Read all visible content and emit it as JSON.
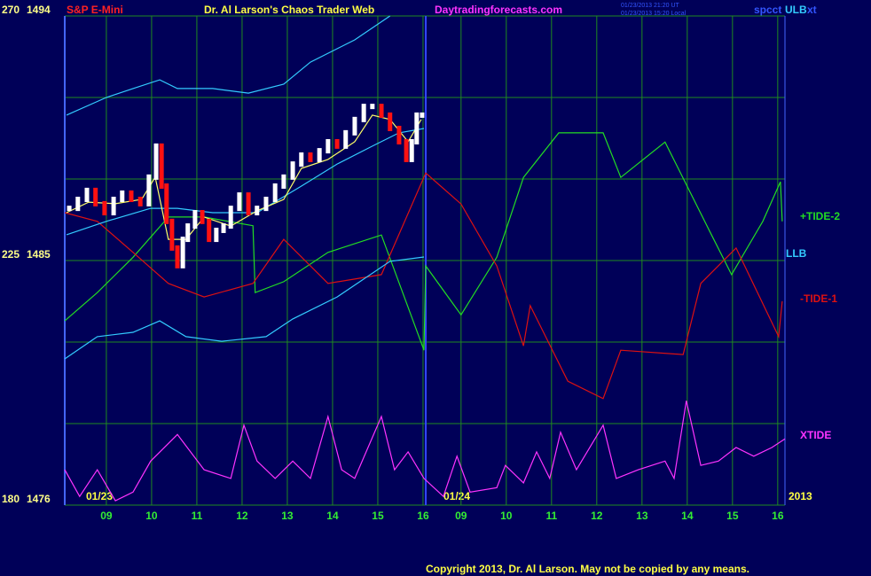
{
  "header": {
    "symbol": "S&P E-Mini",
    "site_name": "Dr. Al Larson's Chaos Trader Web",
    "site_url": "Daytradingforecasts.com",
    "time_ut": "01/23/2013 21:20 UT",
    "time_local": "01/23/2013 15:20 Local",
    "chart_code_left": "spcct",
    "chart_code_right": "xt"
  },
  "footer": {
    "copyright": "Copyright 2013, Dr. Al Larson. May not be copied by any means."
  },
  "date_labels": [
    "01/23",
    "01/24",
    "2013"
  ],
  "chart_data": {
    "type": "line",
    "grid": true,
    "xlim": [
      8.08,
      24.0
    ],
    "xticks": [
      {
        "value": 9,
        "label": "09"
      },
      10,
      11,
      12,
      13,
      14,
      15,
      16,
      {
        "value": 16.84,
        "label": "09"
      },
      {
        "value": 17.84,
        "label": "10"
      },
      {
        "value": 18.84,
        "label": "11"
      },
      {
        "value": 19.84,
        "label": "12"
      },
      {
        "value": 20.84,
        "label": "13"
      },
      {
        "value": 21.84,
        "label": "14"
      },
      {
        "value": 22.84,
        "label": "15"
      },
      {
        "value": 23.84,
        "label": "16"
      }
    ],
    "ylim": [
      180,
      270
    ],
    "yticks": [
      180,
      {
        "value": 195,
        "label": null
      },
      {
        "value": 210,
        "label": null
      },
      225,
      {
        "value": 240,
        "label": null
      },
      {
        "value": 255,
        "label": null
      },
      270
    ],
    "y2lim": [
      1476,
      1494
    ],
    "y2ticks": [
      1476,
      1485,
      1494
    ],
    "current_time": 16.06,
    "series": [
      {
        "name": "+TIDE-2",
        "color": "#22dd22",
        "axis": "y",
        "x": [
          8.08,
          8.8,
          9.59,
          10.37,
          11.16,
          12.24,
          12.29,
          12.92,
          13.9,
          15.08,
          16.02,
          16.06,
          16.84,
          17.63,
          18.22,
          19.0,
          19.98,
          20.37,
          21.35,
          22.33,
          22.82,
          23.51,
          23.9,
          23.94
        ],
        "values": [
          213.9,
          219.1,
          225.6,
          233.0,
          233.0,
          231.4,
          219.1,
          221.1,
          226.5,
          229.7,
          208.5,
          224.0,
          215.0,
          225.6,
          240.3,
          248.5,
          248.5,
          240.3,
          246.8,
          230.5,
          222.4,
          232.2,
          239.5,
          232.2
        ]
      },
      {
        "name": "-TIDE-1",
        "color": "#dd1111",
        "axis": "y",
        "x": [
          8.08,
          8.8,
          9.59,
          10.37,
          11.16,
          12.24,
          12.92,
          13.9,
          15.08,
          16.06,
          16.84,
          17.63,
          18.22,
          18.37,
          19.2,
          19.98,
          20.37,
          21.75,
          22.14,
          22.92,
          23.86,
          23.94
        ],
        "values": [
          233.8,
          232.2,
          226.5,
          220.8,
          218.3,
          220.8,
          228.9,
          220.8,
          222.4,
          241.1,
          235.4,
          224.0,
          209.3,
          216.7,
          202.8,
          199.6,
          208.5,
          207.7,
          220.8,
          227.3,
          211.0,
          217.5
        ]
      },
      {
        "name": "XTIDE",
        "color": "#ff33ff",
        "axis": "y",
        "x": [
          8.08,
          8.41,
          8.8,
          9.2,
          9.59,
          9.98,
          10.57,
          11.16,
          11.75,
          12.04,
          12.33,
          12.73,
          13.12,
          13.51,
          13.9,
          14.2,
          14.49,
          15.08,
          15.37,
          15.67,
          16.02,
          16.45,
          16.75,
          17.04,
          17.63,
          17.82,
          18.22,
          18.51,
          18.8,
          19.04,
          19.39,
          19.98,
          20.27,
          20.76,
          21.35,
          21.55,
          21.82,
          22.14,
          22.53,
          22.92,
          23.31,
          23.71,
          24.0
        ],
        "values": [
          186.5,
          181.6,
          186.5,
          180.8,
          182.4,
          188.1,
          193.0,
          186.5,
          184.9,
          194.7,
          188.1,
          184.9,
          188.1,
          184.9,
          196.3,
          186.5,
          184.9,
          196.3,
          186.5,
          189.8,
          184.9,
          181.6,
          189.0,
          182.4,
          183.2,
          187.3,
          184.1,
          189.8,
          184.9,
          193.4,
          186.5,
          194.7,
          184.9,
          186.5,
          188.1,
          184.9,
          199.2,
          187.3,
          188.1,
          190.6,
          189.0,
          190.6,
          192.2
        ]
      },
      {
        "name": "ULB",
        "color": "#33ccff",
        "axis": "y2",
        "x": [
          8.12,
          9.0,
          9.59,
          10.18,
          10.57,
          11.35,
          12.14,
          12.92,
          13.51,
          14.49,
          15.27
        ],
        "values": [
          1490.35,
          1491.0,
          1491.33,
          1491.65,
          1491.33,
          1491.33,
          1491.16,
          1491.49,
          1492.3,
          1493.12,
          1494.0
        ]
      },
      {
        "name": "LLB",
        "color": "#33ccff",
        "axis": "y2",
        "x": [
          8.08,
          8.8,
          9.59,
          10.18,
          10.76,
          11.55,
          12.53,
          13.12,
          14.1,
          15.27,
          16.02
        ],
        "values": [
          1481.38,
          1482.2,
          1482.36,
          1482.78,
          1482.2,
          1482.03,
          1482.2,
          1482.85,
          1483.66,
          1484.97,
          1485.13
        ]
      },
      {
        "color": "#33ccff",
        "axis": "y2",
        "x": [
          8.12,
          9.0,
          9.98,
          10.57,
          11.35,
          12.33,
          13.31,
          14.1,
          14.88,
          15.47,
          16.02
        ],
        "values": [
          1485.95,
          1486.44,
          1486.92,
          1486.92,
          1486.76,
          1486.76,
          1487.74,
          1488.55,
          1489.21,
          1489.7,
          1489.86
        ]
      },
      {
        "color": "#ffff66",
        "axis": "y2",
        "x": [
          8.12,
          8.61,
          9.2,
          9.78,
          10.08,
          10.37,
          10.76,
          11.16,
          11.75,
          12.33,
          12.92,
          13.31,
          13.9,
          14.49,
          14.88,
          15.27,
          15.67,
          15.96
        ],
        "values": [
          1486.76,
          1487.15,
          1487.09,
          1487.25,
          1488.07,
          1485.78,
          1485.78,
          1486.6,
          1486.27,
          1486.83,
          1487.25,
          1488.39,
          1488.72,
          1489.37,
          1490.35,
          1490.19,
          1489.37,
          1490.19
        ]
      },
      {
        "style": "candle",
        "color": "#ffffff",
        "down_color": "#ff1111",
        "axis": "y2",
        "x": [
          8.18,
          8.37,
          8.57,
          8.76,
          8.96,
          9.16,
          9.35,
          9.55,
          9.75,
          9.94,
          10.1,
          10.22,
          10.33,
          10.45,
          10.57,
          10.69,
          10.8,
          10.96,
          11.12,
          11.27,
          11.43,
          11.59,
          11.75,
          11.94,
          12.14,
          12.33,
          12.53,
          12.73,
          12.92,
          13.12,
          13.31,
          13.51,
          13.71,
          13.9,
          14.1,
          14.29,
          14.49,
          14.69,
          14.88,
          15.08,
          15.27,
          15.47,
          15.63,
          15.75,
          15.86,
          15.98
        ],
        "values": [
          1486.92,
          1487.25,
          1487.58,
          1487.09,
          1486.76,
          1487.25,
          1487.48,
          1487.25,
          1487.09,
          1488.07,
          1489.21,
          1487.74,
          1486.44,
          1485.46,
          1484.81,
          1485.78,
          1486.27,
          1486.76,
          1486.44,
          1485.78,
          1486.11,
          1486.27,
          1486.92,
          1487.41,
          1486.76,
          1486.92,
          1487.25,
          1487.74,
          1488.07,
          1488.55,
          1488.88,
          1488.72,
          1489.04,
          1489.37,
          1489.21,
          1489.7,
          1490.19,
          1490.67,
          1490.67,
          1490.35,
          1489.86,
          1489.37,
          1488.72,
          1489.37,
          1490.35,
          1490.35
        ]
      }
    ]
  }
}
